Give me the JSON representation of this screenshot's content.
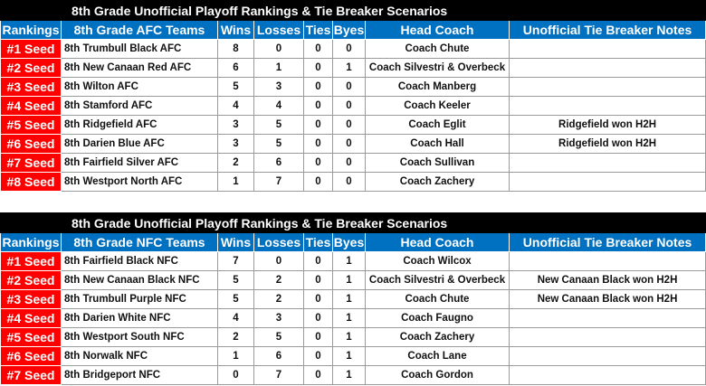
{
  "tables": [
    {
      "title": "8th Grade Unofficial Playoff Rankings & Tie Breaker Scenarios",
      "headers": [
        "Rankings",
        "8th Grade AFC Teams",
        "Wins",
        "Losses",
        "Ties",
        "Byes",
        "Head Coach",
        "Unofficial Tie Breaker Notes"
      ],
      "rows": [
        [
          "#1 Seed",
          "8th Trumbull Black AFC",
          "8",
          "0",
          "0",
          "0",
          "Coach Chute",
          ""
        ],
        [
          "#2 Seed",
          "8th New Canaan Red AFC",
          "6",
          "1",
          "0",
          "1",
          "Coach Silvestri & Overbeck",
          ""
        ],
        [
          "#3 Seed",
          "8th Wilton AFC",
          "5",
          "3",
          "0",
          "0",
          "Coach Manberg",
          ""
        ],
        [
          "#4 Seed",
          "8th Stamford AFC",
          "4",
          "4",
          "0",
          "0",
          "Coach Keeler",
          ""
        ],
        [
          "#5 Seed",
          "8th Ridgefield AFC",
          "3",
          "5",
          "0",
          "0",
          "Coach Eglit",
          "Ridgefield won H2H"
        ],
        [
          "#6 Seed",
          "8th Darien Blue AFC",
          "3",
          "5",
          "0",
          "0",
          "Coach Hall",
          "Ridgefield won H2H"
        ],
        [
          "#7 Seed",
          "8th Fairfield Silver AFC",
          "2",
          "6",
          "0",
          "0",
          "Coach Sullivan",
          ""
        ],
        [
          "#8 Seed",
          "8th Westport North AFC",
          "1",
          "7",
          "0",
          "0",
          "Coach Zachery",
          ""
        ]
      ]
    },
    {
      "title": "8th Grade Unofficial Playoff Rankings & Tie Breaker Scenarios",
      "headers": [
        "Rankings",
        "8th Grade NFC Teams",
        "Wins",
        "Losses",
        "Ties",
        "Byes",
        "Head Coach",
        "Unofficial Tie Breaker Notes"
      ],
      "rows": [
        [
          "#1 Seed",
          "8th Fairfield Black NFC",
          "7",
          "0",
          "0",
          "1",
          "Coach Wilcox",
          ""
        ],
        [
          "#2 Seed",
          "8th New Canaan Black NFC",
          "5",
          "2",
          "0",
          "1",
          "Coach Silvestri & Overbeck",
          "New Canaan Black won H2H"
        ],
        [
          "#3 Seed",
          "8th Trumbull Purple NFC",
          "5",
          "2",
          "0",
          "1",
          "Coach Chute",
          "New Canaan Black won H2H"
        ],
        [
          "#4 Seed",
          "8th Darien White NFC",
          "4",
          "3",
          "0",
          "1",
          "Coach Faugno",
          ""
        ],
        [
          "#5 Seed",
          "8th Westport South NFC",
          "2",
          "5",
          "0",
          "1",
          "Coach Zachery",
          ""
        ],
        [
          "#6 Seed",
          "8th Norwalk NFC",
          "1",
          "6",
          "0",
          "1",
          "Coach Lane",
          ""
        ],
        [
          "#7 Seed",
          "8th Bridgeport NFC",
          "0",
          "7",
          "0",
          "1",
          "Coach Gordon",
          ""
        ]
      ]
    }
  ],
  "colors": {
    "title_bg": "#000000",
    "header_bg": "#0070C0",
    "seed_bg": "#FF0000"
  }
}
